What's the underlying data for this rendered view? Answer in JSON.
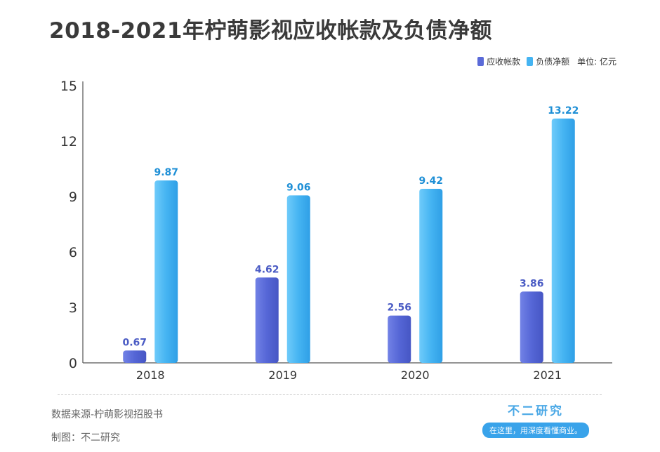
{
  "title": "2018-2021年柠萌影视应收帐款及负债净额",
  "legend": {
    "items": [
      {
        "label": "应收帐款",
        "color": "#5a6ad8"
      },
      {
        "label": "负债净额",
        "color": "#45b4f2"
      }
    ],
    "unit": "单位: 亿元"
  },
  "chart_data": {
    "type": "bar",
    "title": "2018-2021年柠萌影视应收帐款及负债净额",
    "categories": [
      "2018",
      "2019",
      "2020",
      "2021"
    ],
    "series": [
      {
        "name": "应收帐款",
        "values": [
          0.67,
          4.62,
          2.56,
          3.86
        ],
        "color": "#5a6ad8",
        "label_color": "#4a5bc4"
      },
      {
        "name": "负债净额",
        "values": [
          9.87,
          9.06,
          9.42,
          13.22
        ],
        "color": "#45b4f2",
        "label_color": "#1e8fd6"
      }
    ],
    "yticks": [
      0,
      3,
      6,
      9,
      12,
      15
    ],
    "ylim": [
      0,
      15
    ],
    "grid": false,
    "legend_position": "top-right",
    "xlabel": "",
    "ylabel": ""
  },
  "footer": {
    "source": "数据来源-柠萌影视招股书",
    "credit": "制图：不二研究"
  },
  "brand": {
    "name": "不二研究",
    "slogan": "在这里，用深度看懂商业。"
  }
}
